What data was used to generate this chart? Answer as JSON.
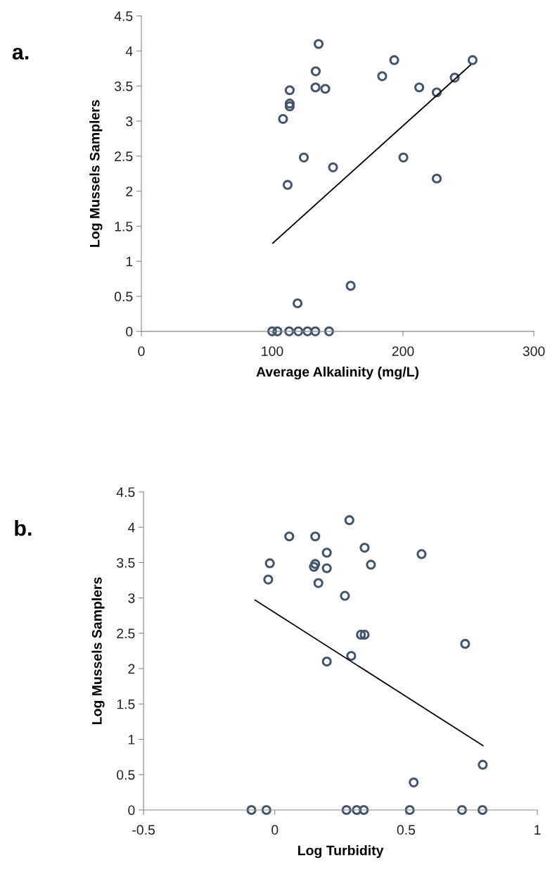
{
  "chart_data": [
    {
      "type": "scatter",
      "xlabel": "Average Alkalinity (mg/L)",
      "ylabel": "Log Mussels Samplers",
      "annotations": [
        "a."
      ],
      "xlim": [
        0,
        300
      ],
      "xticks": [
        0,
        100,
        200,
        300
      ],
      "ylim": [
        0,
        4.5
      ],
      "yticks": [
        0,
        0.5,
        1,
        1.5,
        2,
        2.5,
        3,
        3.5,
        4,
        4.5
      ],
      "grid": false,
      "series": [
        {
          "color": "#44546a",
          "marker": "circle",
          "x": [
            100,
            104,
            113,
            120,
            127,
            133,
            143.5,
            119.4,
            160,
            111.8,
            124.2,
            146.5,
            200.3,
            225.8,
            108.3,
            113.4,
            113.4,
            113.4,
            133.1,
            140.6,
            133.3,
            135.5,
            184.1,
            193.3,
            212.4,
            225.8,
            239.5,
            253.2
          ],
          "values": [
            0,
            0,
            0,
            0,
            0,
            0,
            0,
            0.4,
            0.65,
            2.09,
            2.48,
            2.34,
            2.48,
            2.18,
            3.03,
            3.21,
            3.25,
            3.44,
            3.48,
            3.46,
            3.71,
            4.1,
            3.64,
            3.87,
            3.48,
            3.41,
            3.62,
            3.87
          ]
        },
        {
          "type": "line",
          "color": "#000000",
          "marker": "none",
          "x": [
            100.5,
            251.6
          ],
          "values": [
            1.26,
            3.8
          ]
        }
      ]
    },
    {
      "type": "scatter",
      "xlabel": "Log Turbidity",
      "ylabel": "Log Mussels Samplers",
      "annotations": [
        "b."
      ],
      "xlim": [
        -0.5,
        1
      ],
      "xticks": [
        -0.5,
        0,
        0.5,
        1
      ],
      "ylim": [
        0,
        4.5
      ],
      "yticks": [
        0,
        0.5,
        1,
        1.5,
        2,
        2.5,
        3,
        3.5,
        4,
        4.5
      ],
      "grid": false,
      "series": [
        {
          "color": "#44546a",
          "marker": "circle",
          "x": [
            -0.089,
            -0.032,
            0.273,
            0.312,
            0.339,
            0.514,
            0.713,
            0.791,
            0.529,
            0.792,
            -0.025,
            -0.019,
            0.055,
            0.154,
            0.198,
            0.154,
            0.149,
            0.198,
            0.166,
            0.284,
            0.342,
            0.366,
            0.559,
            0.267,
            0.328,
            0.342,
            0.725,
            0.198,
            0.291
          ],
          "values": [
            0,
            0,
            0,
            0,
            0,
            0,
            0,
            0,
            0.39,
            0.64,
            3.26,
            3.49,
            3.87,
            3.87,
            3.64,
            3.48,
            3.44,
            3.42,
            3.21,
            4.1,
            3.71,
            3.47,
            3.62,
            3.03,
            2.48,
            2.48,
            2.35,
            2.1,
            2.18
          ]
        },
        {
          "type": "line",
          "color": "#000000",
          "marker": "none",
          "x": [
            -0.075,
            0.793
          ],
          "values": [
            2.97,
            0.91
          ]
        }
      ]
    }
  ]
}
